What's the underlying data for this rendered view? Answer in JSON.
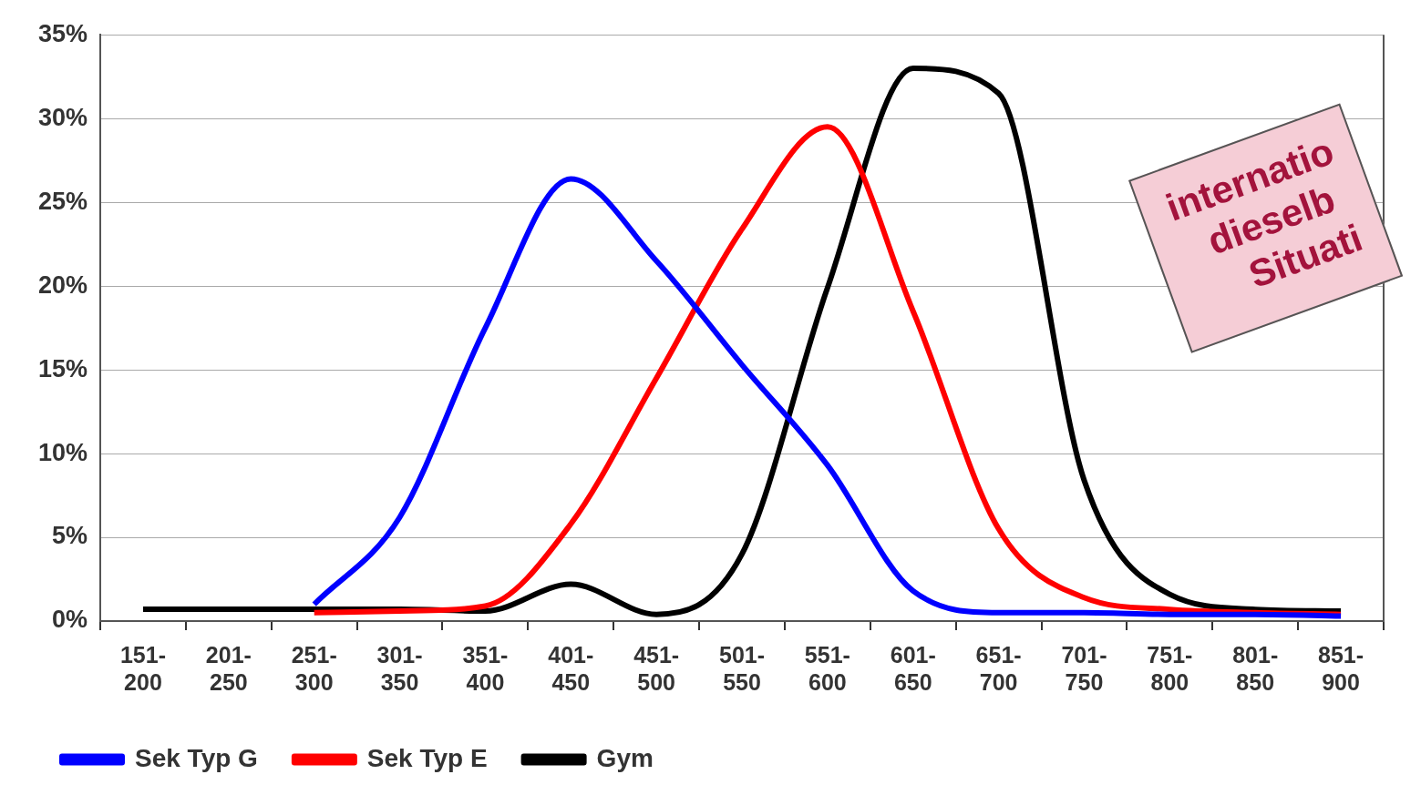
{
  "chart_data": {
    "type": "line",
    "ylim": [
      0,
      35
    ],
    "categories": [
      "151-200",
      "201-250",
      "251-300",
      "301-350",
      "351-400",
      "401-450",
      "451-500",
      "501-550",
      "551-600",
      "601-650",
      "651-700",
      "701-750",
      "751-800",
      "801-850",
      "851-900"
    ],
    "yticks": [
      {
        "value": 0,
        "label": "0%"
      },
      {
        "value": 5,
        "label": "5%"
      },
      {
        "value": 10,
        "label": "10%"
      },
      {
        "value": 15,
        "label": "15%"
      },
      {
        "value": 20,
        "label": "20%"
      },
      {
        "value": 25,
        "label": "25%"
      },
      {
        "value": 30,
        "label": "30%"
      },
      {
        "value": 35,
        "label": "35%"
      }
    ],
    "grid": "y",
    "legend": "bottom left",
    "marker": "none",
    "line_style": "solid",
    "annotations": [
      "internatio",
      "dieselb",
      "Situati"
    ],
    "series": [
      {
        "name": "Sek Typ G",
        "color": "#0000ff",
        "values": [
          null,
          null,
          1.0,
          6.2,
          17.5,
          26.4,
          21.5,
          15.3,
          9.3,
          1.8,
          0.5,
          0.5,
          0.4,
          0.4,
          0.3
        ]
      },
      {
        "name": "Sek Typ E",
        "color": "#ff0000",
        "values": [
          null,
          null,
          0.5,
          0.6,
          0.9,
          5.8,
          14.5,
          23.4,
          29.5,
          18.5,
          5.5,
          1.4,
          0.7,
          0.5,
          0.4
        ]
      },
      {
        "name": "Gym",
        "color": "#000000",
        "values": [
          0.7,
          0.7,
          0.7,
          0.7,
          0.6,
          2.2,
          0.4,
          4.0,
          19.9,
          33.0,
          31.5,
          8.4,
          1.6,
          0.7,
          0.6
        ]
      }
    ]
  }
}
